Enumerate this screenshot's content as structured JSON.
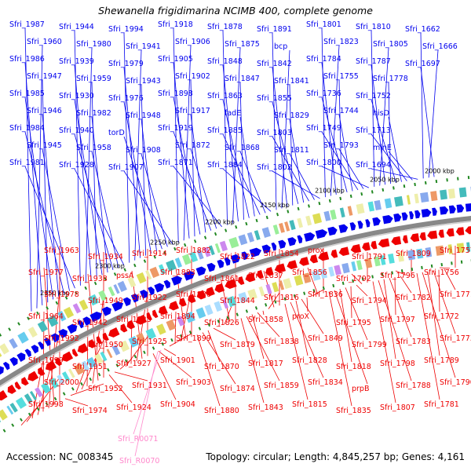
{
  "title": "Shewanella frigidimarina NCIMB 400, complete genome",
  "footer": {
    "accession": "Accession: NC_008345",
    "summary": "Topology: circular; Length: 4,845,257 bp; Genes: 4,161"
  },
  "colors": {
    "forward_gene": "#0000ee",
    "reverse_gene": "#ee0000",
    "backbone": "#888888",
    "rna_label": "#ff88cc",
    "tick_mark": "#228822"
  },
  "scale_labels": [
    {
      "text": "2000 kbp",
      "kbp": 2000
    },
    {
      "text": "2050 kbp",
      "kbp": 2050
    },
    {
      "text": "2100 kbp",
      "kbp": 2100
    },
    {
      "text": "2150 kbp",
      "kbp": 2150
    },
    {
      "text": "2200 kbp",
      "kbp": 2200
    },
    {
      "text": "2250 kbp",
      "kbp": 2250
    },
    {
      "text": "2300 kbp",
      "kbp": 2300
    },
    {
      "text": "2350 kbp",
      "kbp": 2350
    }
  ],
  "forward_labels": [
    "Sfri_1987",
    "Sfri_1960",
    "Sfri_1986",
    "Sfri_1947",
    "Sfri_1985",
    "Sfri_1946",
    "Sfri_1984",
    "Sfri_1945",
    "Sfri_1981",
    "Sfri_1944",
    "Sfri_1980",
    "Sfri_1939",
    "Sfri_1959",
    "Sfri_1930",
    "Sfri_1982",
    "Sfri_1940",
    "Sfri_1958",
    "Sfri_1928",
    "Sfri_1994",
    "Sfri_1941",
    "Sfri_1979",
    "Sfri_1943",
    "Sfri_1976",
    "Sfri_1948",
    "torD",
    "Sfri_1908",
    "Sfri_1907",
    "Sfri_1918",
    "Sfri_1906",
    "Sfri_1905",
    "Sfri_1902",
    "Sfri_1898",
    "Sfri_1917",
    "Sfri_1919",
    "Sfri_1872",
    "Sfri_1871",
    "Sfri_1878",
    "Sfri_1875",
    "Sfri_1848",
    "Sfri_1847",
    "Sfri_1863",
    "fadE",
    "Sfri_1885",
    "Sfri_1868",
    "Sfri_1884",
    "Sfri_1891",
    "bcp",
    "Sfri_1842",
    "Sfri_1841",
    "Sfri_1855",
    "Sfri_1829",
    "Sfri_1803",
    "Sfri_1811",
    "Sfri_1802",
    "Sfri_1801",
    "Sfri_1823",
    "Sfri_1784",
    "Sfri_1755",
    "Sfri_1736",
    "Sfri_1744",
    "Sfri_1749",
    "Sfri_1793",
    "Sfri_1800",
    "Sfri_1810",
    "Sfri_1805",
    "Sfri_1787",
    "Sfri_1778",
    "Sfri_1752",
    "hisD",
    "Sfri_1713",
    "minE",
    "Sfri_1694",
    "Sfri_1662",
    "Sfri_1666",
    "Sfri_1697"
  ],
  "reverse_labels": [
    "Sfri_1757",
    "Sfri_1756",
    "Sfri_1771",
    "Sfri_1772",
    "Sfri_1773",
    "Sfri_1789",
    "Sfri_1790",
    "Sfri_1781",
    "Sfri_1809",
    "Sfri_1796",
    "Sfri_1782",
    "Sfri_1797",
    "Sfri_1783",
    "Sfri_1798",
    "Sfri_1788",
    "Sfri_1807",
    "Sfri_1791",
    "Sfri_1792",
    "Sfri_1794",
    "Sfri_1795",
    "Sfri_1799",
    "Sfri_1818",
    "prpB",
    "Sfri_1835",
    "prox",
    "Sfri_1856",
    "Sfri_1836",
    "proX",
    "Sfri_1849",
    "Sfri_1828",
    "Sfri_1834",
    "Sfri_1815",
    "Sfri_1854",
    "Sfri_1837",
    "Sfri_1816",
    "Sfri_1858",
    "Sfri_1838",
    "Sfri_1817",
    "Sfri_1859",
    "Sfri_1843",
    "Sfri_1822",
    "Sfri_1861",
    "Sfri_1844",
    "Sfri_1826",
    "Sfri_1879",
    "Sfri_1870",
    "Sfri_1874",
    "Sfri_1880",
    "Sfri_1882",
    "Sfri_1883",
    "Sfri_1886",
    "Sfri_1894",
    "Sfri_1899",
    "Sfri_1901",
    "Sfri_1903",
    "Sfri_1904",
    "Sfri_1914",
    "pssA",
    "Sfri_1922",
    "Sfri_1923",
    "Sfri_1925",
    "Sfri_1927",
    "Sfri_1931",
    "Sfri_1924",
    "Sfri_1934",
    "Sfri_1938",
    "Sfri_1949",
    "Sfri_1942",
    "Sfri_1950",
    "Sfri_1951",
    "Sfri_1952",
    "Sfri_1974",
    "Sfri_1963",
    "Sfri_1977",
    "Sfri_1978",
    "Sfri_1964",
    "Sfri_1992",
    "Sfri_1999",
    "Sfri_2000",
    "Sfri_1998"
  ],
  "rna_labels": [
    "Sfri_R0071",
    "Sfri_R0070"
  ]
}
